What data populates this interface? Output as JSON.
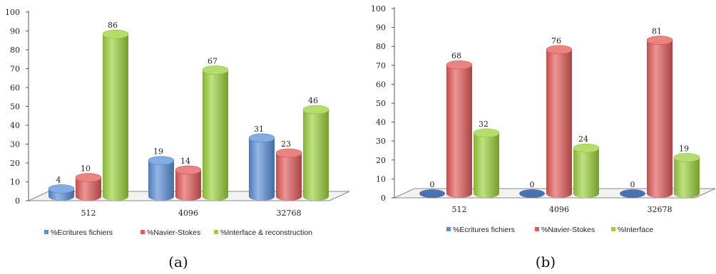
{
  "chart_data": [
    {
      "type": "bar",
      "caption": "(a)",
      "categories": [
        "512",
        "4096",
        "32768"
      ],
      "series": [
        {
          "name": "%Ecritures fichiers",
          "values": [
            4,
            19,
            31
          ],
          "color": "#5b8fd9"
        },
        {
          "name": "%Navier-Stokes",
          "values": [
            10,
            14,
            23
          ],
          "color": "#e45a5a"
        },
        {
          "name": "%Interface & reconstruction",
          "values": [
            86,
            67,
            46
          ],
          "color": "#9bd23c"
        }
      ],
      "ylim": [
        0,
        100
      ],
      "yticks": [
        0,
        10,
        20,
        30,
        40,
        50,
        60,
        70,
        80,
        90,
        100
      ],
      "legend_position": "bottom"
    },
    {
      "type": "bar",
      "caption": "(b)",
      "categories": [
        "512",
        "4096",
        "32678"
      ],
      "series": [
        {
          "name": "%Ecritures fichiers",
          "values": [
            0,
            0,
            0
          ],
          "color": "#5b8fd9"
        },
        {
          "name": "%Navier-Stokes",
          "values": [
            68,
            76,
            81
          ],
          "color": "#e45a5a"
        },
        {
          "name": "%Interface",
          "values": [
            32,
            24,
            19
          ],
          "color": "#9bd23c"
        }
      ],
      "ylim": [
        0,
        100
      ],
      "yticks": [
        0,
        10,
        20,
        30,
        40,
        50,
        60,
        70,
        80,
        90,
        100
      ],
      "legend_position": "bottom"
    }
  ]
}
